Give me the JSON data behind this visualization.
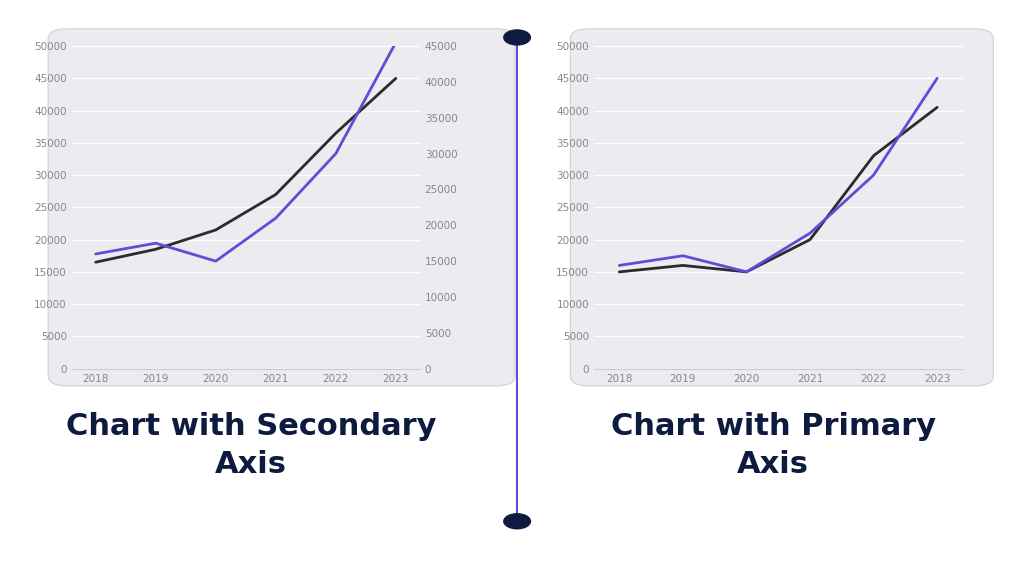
{
  "years": [
    2018,
    2019,
    2020,
    2021,
    2022,
    2023
  ],
  "black_line": [
    16500,
    18500,
    21500,
    27000,
    36500,
    45000
  ],
  "purple_line": [
    16000,
    17500,
    15000,
    21000,
    30000,
    45500
  ],
  "black_line_right": [
    15000,
    16000,
    15000,
    20000,
    33000,
    40500
  ],
  "purple_line_right": [
    16000,
    17500,
    15000,
    21000,
    30000,
    45000
  ],
  "primary_ylim": [
    0,
    50000
  ],
  "primary_yticks": [
    0,
    5000,
    10000,
    15000,
    20000,
    25000,
    30000,
    35000,
    40000,
    45000,
    50000
  ],
  "secondary_ylim": [
    0,
    45000
  ],
  "secondary_yticks": [
    0,
    5000,
    10000,
    15000,
    20000,
    25000,
    30000,
    35000,
    40000,
    45000
  ],
  "black_color": "#2b2b2b",
  "purple_color": "#5c4fd6",
  "divider_color": "#5c4fd6",
  "chart_bg": "#ebebf0",
  "outer_bg": "#ffffff",
  "title_left": "Chart with Secondary\nAxis",
  "title_right": "Chart with Primary\nAxis",
  "title_color": "#0d1b3e",
  "title_fontsize": 22,
  "line_width": 2.0,
  "tick_fontsize": 7.5,
  "panel_border_color": "#d0d0d8",
  "grid_color": "#ffffff",
  "tick_color": "#888888",
  "bottom_spine_color": "#cccccc"
}
